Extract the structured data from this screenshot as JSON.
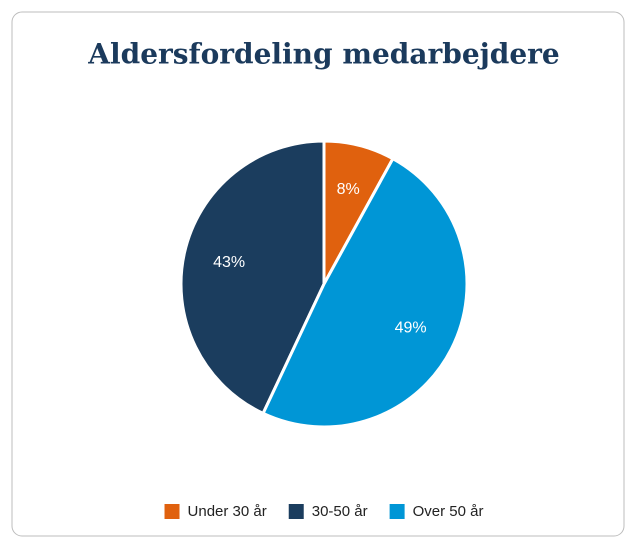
{
  "chart_data": {
    "type": "pie",
    "title": "Aldersfordeling medarbejdere",
    "categories": [
      "Under 30 år",
      "30-50 år",
      "Over 50 år"
    ],
    "values": [
      8,
      43,
      49
    ],
    "value_labels": [
      "8%",
      "43%",
      "49%"
    ],
    "colors": [
      "#e0610e",
      "#1b3d5e",
      "#0096d6"
    ],
    "legend": "bottom"
  }
}
